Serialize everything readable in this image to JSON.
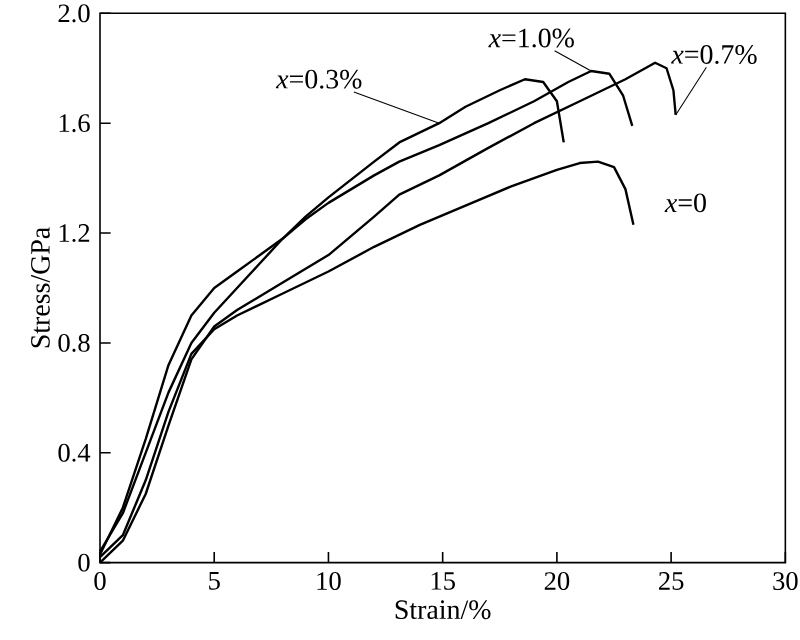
{
  "chart_data": {
    "type": "line",
    "xlabel": "Strain/%",
    "ylabel": "Stress/GPa",
    "xlim": [
      0,
      30
    ],
    "ylim": [
      0,
      2.0
    ],
    "xticks": [
      0,
      5,
      10,
      15,
      20,
      25,
      30
    ],
    "yticks": [
      0,
      0.4,
      0.8,
      1.2,
      1.6,
      {
        "value": 2.0,
        "label": "2.0"
      }
    ],
    "series": [
      {
        "name": "*x*=0",
        "color": "#000000",
        "x": [
          0,
          1,
          2,
          3,
          4,
          5,
          6,
          8,
          10,
          12,
          14,
          16,
          18,
          20,
          21,
          21.8,
          22.5,
          23,
          23.35
        ],
        "values": [
          0.02,
          0.1,
          0.3,
          0.55,
          0.76,
          0.85,
          0.9,
          0.98,
          1.06,
          1.15,
          1.23,
          1.3,
          1.37,
          1.43,
          1.455,
          1.46,
          1.44,
          1.36,
          1.23
        ]
      },
      {
        "name": "*x*=0.3%",
        "color": "#000000",
        "x": [
          0,
          1,
          2,
          3,
          4,
          5,
          6,
          7,
          8,
          9,
          10,
          12,
          13.1,
          14.85,
          16,
          17.5,
          18.6,
          19.4,
          20,
          20.3
        ],
        "values": [
          0.04,
          0.18,
          0.4,
          0.62,
          0.8,
          0.91,
          1.0,
          1.09,
          1.18,
          1.26,
          1.33,
          1.46,
          1.53,
          1.6,
          1.66,
          1.72,
          1.76,
          1.75,
          1.68,
          1.53
        ]
      },
      {
        "name": "*x*=0.7%",
        "color": "#000000",
        "x": [
          0,
          1,
          2,
          3,
          4,
          5,
          6,
          8,
          10,
          12,
          13.1,
          14.85,
          17,
          19,
          21,
          23,
          24.3,
          24.8,
          25.1,
          25.2
        ],
        "values": [
          0.0,
          0.08,
          0.25,
          0.5,
          0.74,
          0.86,
          0.92,
          1.02,
          1.12,
          1.26,
          1.34,
          1.41,
          1.51,
          1.6,
          1.68,
          1.76,
          1.82,
          1.8,
          1.72,
          1.63
        ]
      },
      {
        "name": "*x*=1.0%",
        "color": "#000000",
        "x": [
          0,
          1,
          2,
          3,
          4,
          5,
          6,
          7,
          8,
          9,
          10,
          12,
          13.1,
          14.85,
          17,
          19,
          20.5,
          21.5,
          22.3,
          22.9,
          23.3
        ],
        "values": [
          0.03,
          0.2,
          0.45,
          0.72,
          0.9,
          1.0,
          1.06,
          1.12,
          1.18,
          1.25,
          1.31,
          1.41,
          1.46,
          1.52,
          1.6,
          1.68,
          1.75,
          1.79,
          1.78,
          1.7,
          1.59
        ]
      }
    ]
  }
}
